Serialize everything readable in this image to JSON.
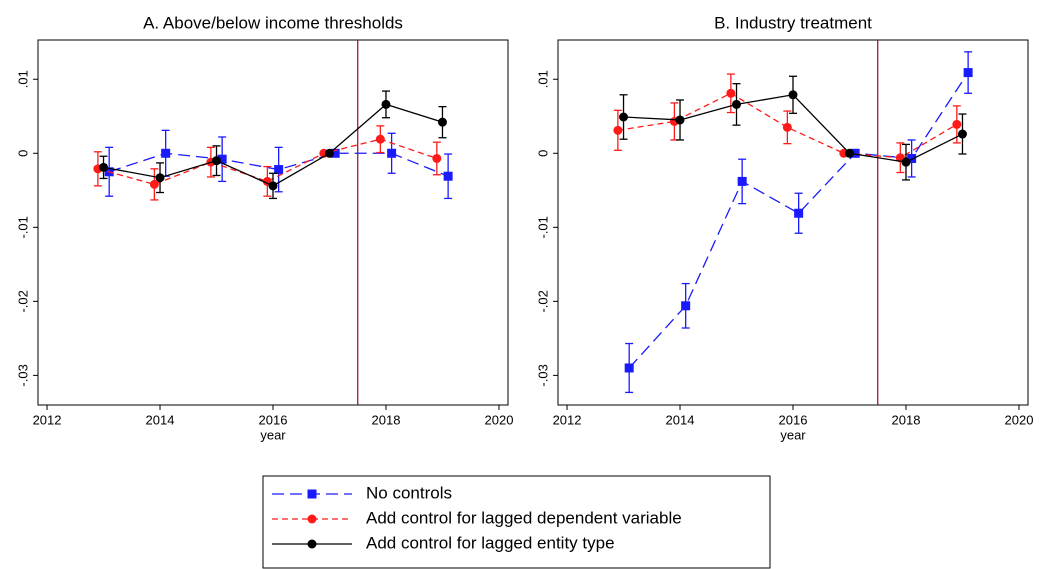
{
  "chart_data": [
    {
      "type": "line",
      "title": "A. Above/below income thresholds",
      "xlabel": "year",
      "xlim": [
        2011.84,
        2020.16
      ],
      "xticks": [
        2012,
        2014,
        2016,
        2018,
        2020
      ],
      "ylim": [
        -0.034,
        0.0153
      ],
      "yticks": [
        {
          "value": 0.01,
          "label": ".01"
        },
        0,
        {
          "value": -0.01,
          "label": "-.01"
        },
        {
          "value": -0.02,
          "label": "-.02"
        },
        {
          "value": -0.03,
          "label": "-.03"
        }
      ],
      "reference_line": 2017.5,
      "reference_color": "#a3003c",
      "series": [
        {
          "name": "No controls",
          "color": "#1a1aff",
          "dash": "long",
          "marker": "square",
          "x": [
            2013.1,
            2014.1,
            2015.1,
            2016.1,
            2017.1,
            2018.1,
            2019.1
          ],
          "values": [
            -0.0025,
            0,
            -0.0008,
            -0.0022,
            0,
            0,
            -0.0031
          ],
          "errors": [
            0.0033,
            0.0031,
            0.003,
            0.003,
            0,
            0.0027,
            0.003
          ]
        },
        {
          "name": "Add control for lagged dependent variable",
          "color": "#ff1a1a",
          "dash": "short",
          "marker": "circle",
          "x": [
            2012.9,
            2013.9,
            2014.9,
            2015.9,
            2016.9,
            2017.9,
            2018.9
          ],
          "values": [
            -0.0021,
            -0.0042,
            -0.0012,
            -0.0038,
            0,
            0.0019,
            -0.0007
          ],
          "errors": [
            0.0023,
            0.0021,
            0.002,
            0.002,
            0,
            0.0018,
            0.0022
          ]
        },
        {
          "name": "Add control for lagged entity type",
          "color": "#000000",
          "dash": "solid",
          "marker": "circle",
          "x": [
            2013,
            2014,
            2015,
            2016,
            2017,
            2018,
            2019
          ],
          "values": [
            -0.0019,
            -0.0033,
            -0.001,
            -0.0044,
            0,
            0.0066,
            0.0042
          ],
          "errors": [
            0.0015,
            0.002,
            0.002,
            0.0017,
            0,
            0.0018,
            0.0021
          ]
        }
      ]
    },
    {
      "type": "line",
      "title": "B. Industry treatment",
      "xlabel": "year",
      "xlim": [
        2011.84,
        2020.16
      ],
      "xticks": [
        2012,
        2014,
        2016,
        2018,
        2020
      ],
      "ylim": [
        -0.034,
        0.0153
      ],
      "yticks": [
        {
          "value": 0.01,
          "label": ".01"
        },
        0,
        {
          "value": -0.01,
          "label": "-.01"
        },
        {
          "value": -0.02,
          "label": "-.02"
        },
        {
          "value": -0.03,
          "label": "-.03"
        }
      ],
      "reference_line": 2017.5,
      "reference_color": "#a3003c",
      "series": [
        {
          "color": "#1a1aff",
          "dash": "long",
          "marker": "square",
          "x": [
            2013.1,
            2014.1,
            2015.1,
            2016.1,
            2017.1,
            2018.1,
            2019.1
          ],
          "values": [
            -0.029,
            -0.0206,
            -0.0038,
            -0.0081,
            0,
            -0.0007,
            0.0109
          ],
          "errors": [
            0.0033,
            0.003,
            0.003,
            0.0027,
            0,
            0.0025,
            0.0028
          ]
        },
        {
          "color": "#ff1a1a",
          "dash": "short",
          "marker": "circle",
          "x": [
            2012.9,
            2013.9,
            2014.9,
            2015.9,
            2016.9,
            2017.9,
            2018.9
          ],
          "values": [
            0.0031,
            0.0043,
            0.0081,
            0.0035,
            0,
            -0.0006,
            0.0039
          ],
          "errors": [
            0.0027,
            0.0025,
            0.0026,
            0.0022,
            0,
            0.002,
            0.0025
          ]
        },
        {
          "color": "#000000",
          "dash": "solid",
          "marker": "circle",
          "x": [
            2013,
            2014,
            2015,
            2016,
            2017,
            2018,
            2019
          ],
          "values": [
            0.0049,
            0.0045,
            0.0066,
            0.0079,
            0,
            -0.0012,
            0.0026
          ],
          "errors": [
            0.003,
            0.0027,
            0.0028,
            0.0025,
            0,
            0.0024,
            0.0027
          ]
        }
      ]
    }
  ]
}
